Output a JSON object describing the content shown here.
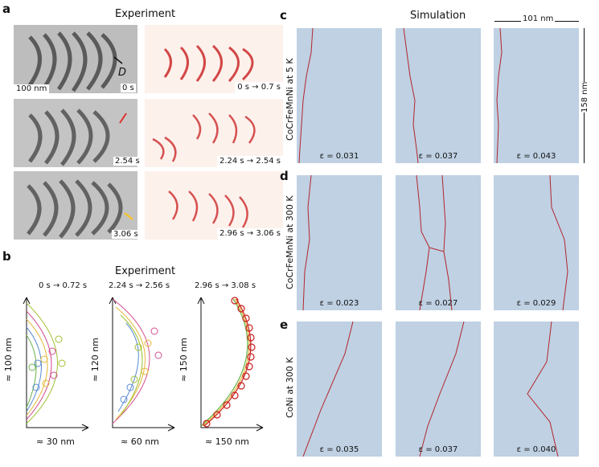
{
  "panels": {
    "a": {
      "letter": "a",
      "header": "Experiment",
      "scale_bar": "100 nm",
      "dislocation_label": "D",
      "rows": [
        {
          "time": "0 s",
          "range": "0 s → 0.7 s"
        },
        {
          "time": "2.54 s",
          "range": "2.24 s → 2.54 s"
        },
        {
          "time": "3.06 s",
          "range": "2.96 s → 3.06 s"
        }
      ],
      "arrow_colors": {
        "row1": "#111111",
        "row2": "#e0302a",
        "row3": "#f1c232"
      }
    },
    "b": {
      "letter": "b",
      "header": "Experiment",
      "plots": [
        {
          "title": "0 s → 0.72 s",
          "ylabel": "≈ 100 nm",
          "xlabel": "≈ 30 nm"
        },
        {
          "title": "2.24 s → 2.56 s",
          "ylabel": "≈ 120 nm",
          "xlabel": "≈ 60 nm"
        },
        {
          "title": "2.96 s → 3.08 s",
          "ylabel": "≈ 150 nm",
          "xlabel": "≈ 150 nm"
        }
      ]
    },
    "c": {
      "letter": "c",
      "header": "Simulation",
      "width_label": "101 nm",
      "height_label": "158 nm",
      "row_label": "CoCrFeMnNi at 5 K",
      "strains": [
        "ε = 0.031",
        "ε = 0.037",
        "ε = 0.043"
      ]
    },
    "d": {
      "letter": "d",
      "row_label": "CoCrFeMnNi at 300 K",
      "strains": [
        "ε = 0.023",
        "ε = 0.027",
        "ε = 0.029"
      ]
    },
    "e": {
      "letter": "e",
      "row_label": "CoNi at 300 K",
      "strains": [
        "ε = 0.035",
        "ε = 0.037",
        "ε = 0.040"
      ]
    }
  },
  "colors": {
    "sim_bg": "#bfd1e3",
    "line": "#b3262c",
    "heat": "#c81e1e"
  }
}
